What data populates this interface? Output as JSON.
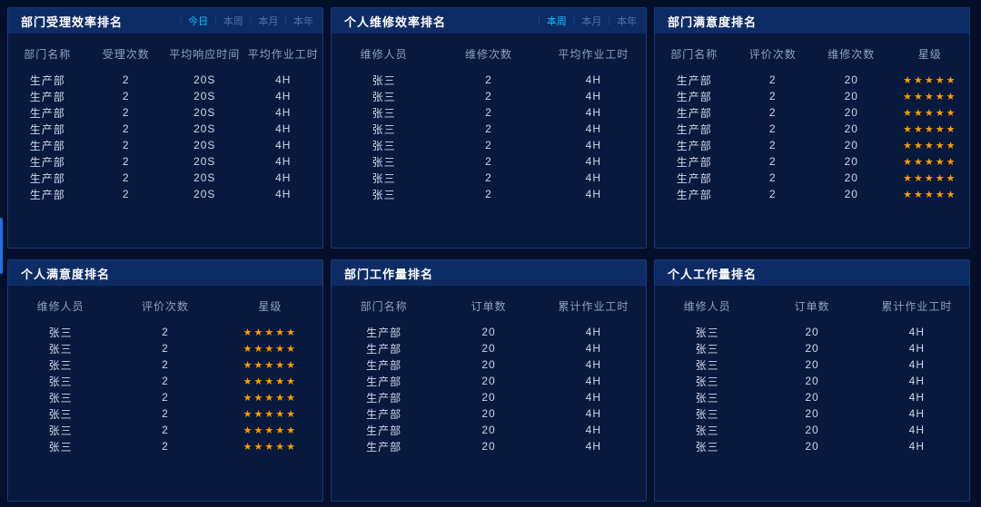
{
  "theme": {
    "page_bg": "#04102a",
    "panel_bg": "#07193c",
    "panel_border": "#1a3a78",
    "header_bg": "#0d2c66",
    "title_color": "#ffffff",
    "tab_active_color": "#00c6ff",
    "tab_inactive_color": "#4d74ab",
    "table_header_color": "#8da2c6",
    "cell_color": "#cfd9ea",
    "star_color": "#ff9b00",
    "scroll_indicator_color": "#2270e8"
  },
  "icons": {
    "star": "★",
    "tab_divider": "|"
  },
  "panels": [
    {
      "id": "dept-acceptance-efficiency",
      "title": "部门受理效率排名",
      "tabs": [
        {
          "label": "今日",
          "active": true
        },
        {
          "label": "本周",
          "active": false
        },
        {
          "label": "本月",
          "active": false
        },
        {
          "label": "本年",
          "active": false
        }
      ],
      "columns": [
        "部门名称",
        "受理次数",
        "平均响应时间",
        "平均作业工时"
      ],
      "rows": [
        [
          "生产部",
          "2",
          "20S",
          "4H"
        ],
        [
          "生产部",
          "2",
          "20S",
          "4H"
        ],
        [
          "生产部",
          "2",
          "20S",
          "4H"
        ],
        [
          "生产部",
          "2",
          "20S",
          "4H"
        ],
        [
          "生产部",
          "2",
          "20S",
          "4H"
        ],
        [
          "生产部",
          "2",
          "20S",
          "4H"
        ],
        [
          "生产部",
          "2",
          "20S",
          "4H"
        ],
        [
          "生产部",
          "2",
          "20S",
          "4H"
        ]
      ]
    },
    {
      "id": "personal-repair-efficiency",
      "title": "个人维修效率排名",
      "tabs": [
        {
          "label": "本周",
          "active": true
        },
        {
          "label": "本月",
          "active": false
        },
        {
          "label": "本年",
          "active": false
        }
      ],
      "columns": [
        "维修人员",
        "维修次数",
        "平均作业工时"
      ],
      "rows": [
        [
          "张三",
          "2",
          "4H"
        ],
        [
          "张三",
          "2",
          "4H"
        ],
        [
          "张三",
          "2",
          "4H"
        ],
        [
          "张三",
          "2",
          "4H"
        ],
        [
          "张三",
          "2",
          "4H"
        ],
        [
          "张三",
          "2",
          "4H"
        ],
        [
          "张三",
          "2",
          "4H"
        ],
        [
          "张三",
          "2",
          "4H"
        ]
      ]
    },
    {
      "id": "dept-satisfaction",
      "title": "部门满意度排名",
      "tabs": [],
      "columns": [
        "部门名称",
        "评价次数",
        "维修次数",
        "星级"
      ],
      "rows": [
        [
          "生产部",
          "2",
          "20",
          {
            "stars": 5
          }
        ],
        [
          "生产部",
          "2",
          "20",
          {
            "stars": 5
          }
        ],
        [
          "生产部",
          "2",
          "20",
          {
            "stars": 5
          }
        ],
        [
          "生产部",
          "2",
          "20",
          {
            "stars": 5
          }
        ],
        [
          "生产部",
          "2",
          "20",
          {
            "stars": 5
          }
        ],
        [
          "生产部",
          "2",
          "20",
          {
            "stars": 5
          }
        ],
        [
          "生产部",
          "2",
          "20",
          {
            "stars": 5
          }
        ],
        [
          "生产部",
          "2",
          "20",
          {
            "stars": 5
          }
        ]
      ]
    },
    {
      "id": "personal-satisfaction",
      "title": "个人满意度排名",
      "tabs": [],
      "columns": [
        "维修人员",
        "评价次数",
        "星级"
      ],
      "rows": [
        [
          "张三",
          "2",
          {
            "stars": 5
          }
        ],
        [
          "张三",
          "2",
          {
            "stars": 5
          }
        ],
        [
          "张三",
          "2",
          {
            "stars": 5
          }
        ],
        [
          "张三",
          "2",
          {
            "stars": 5
          }
        ],
        [
          "张三",
          "2",
          {
            "stars": 5
          }
        ],
        [
          "张三",
          "2",
          {
            "stars": 5
          }
        ],
        [
          "张三",
          "2",
          {
            "stars": 5
          }
        ],
        [
          "张三",
          "2",
          {
            "stars": 5
          }
        ]
      ]
    },
    {
      "id": "dept-workload",
      "title": "部门工作量排名",
      "tabs": [],
      "columns": [
        "部门名称",
        "订单数",
        "累计作业工时"
      ],
      "rows": [
        [
          "生产部",
          "20",
          "4H"
        ],
        [
          "生产部",
          "20",
          "4H"
        ],
        [
          "生产部",
          "20",
          "4H"
        ],
        [
          "生产部",
          "20",
          "4H"
        ],
        [
          "生产部",
          "20",
          "4H"
        ],
        [
          "生产部",
          "20",
          "4H"
        ],
        [
          "生产部",
          "20",
          "4H"
        ],
        [
          "生产部",
          "20",
          "4H"
        ]
      ]
    },
    {
      "id": "personal-workload",
      "title": "个人工作量排名",
      "tabs": [],
      "columns": [
        "维修人员",
        "订单数",
        "累计作业工时"
      ],
      "rows": [
        [
          "张三",
          "20",
          "4H"
        ],
        [
          "张三",
          "20",
          "4H"
        ],
        [
          "张三",
          "20",
          "4H"
        ],
        [
          "张三",
          "20",
          "4H"
        ],
        [
          "张三",
          "20",
          "4H"
        ],
        [
          "张三",
          "20",
          "4H"
        ],
        [
          "张三",
          "20",
          "4H"
        ],
        [
          "张三",
          "20",
          "4H"
        ]
      ]
    }
  ]
}
